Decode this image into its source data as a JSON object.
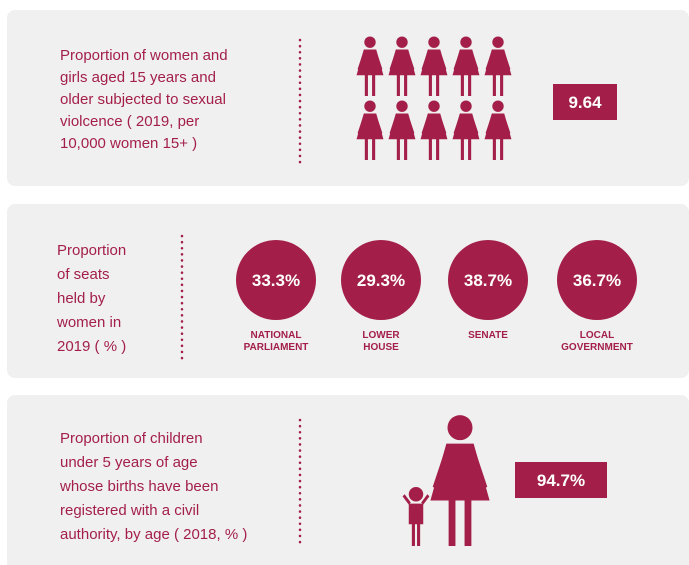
{
  "panels": [
    {
      "description": [
        "Proportion of women and",
        "girls aged 15 years and",
        "older subjected to sexual",
        "violcence ( 2019, per",
        "10,000 women 15+ )"
      ],
      "value": "9.64"
    },
    {
      "description": [
        "Proportion",
        "of seats",
        "held by",
        "women in",
        "2019 ( % )"
      ],
      "items": [
        {
          "value": "33.3%",
          "label": [
            "NATIONAL",
            "PARLIAMENT"
          ]
        },
        {
          "value": "29.3%",
          "label": [
            "LOWER",
            "HOUSE"
          ]
        },
        {
          "value": "38.7%",
          "label": [
            "SENATE"
          ]
        },
        {
          "value": "36.7%",
          "label": [
            "LOCAL",
            "GOVERNMENT"
          ]
        }
      ]
    },
    {
      "description": [
        "Proportion of children",
        "under 5 years of age",
        "whose births have been",
        "registered with a civil",
        "authority, by age ( 2018, % )"
      ],
      "value": "94.7%"
    }
  ]
}
